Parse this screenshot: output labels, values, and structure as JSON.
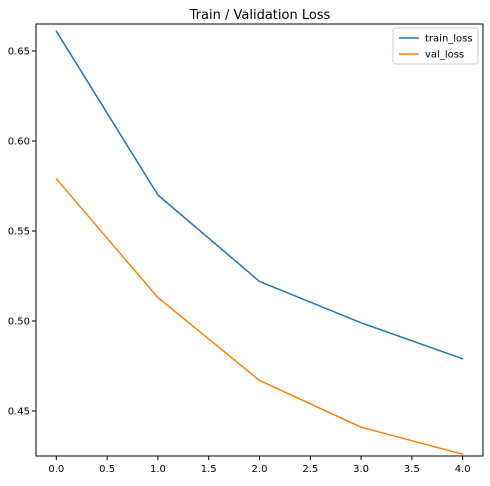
{
  "chart_data": {
    "type": "line",
    "title": "Train / Validation Loss",
    "xlabel": "",
    "ylabel": "",
    "x": [
      0,
      1,
      2,
      3,
      4
    ],
    "xlim": [
      -0.2,
      4.2
    ],
    "ylim": [
      0.425,
      0.665
    ],
    "xticks": [
      0.0,
      0.5,
      1.0,
      1.5,
      2.0,
      2.5,
      3.0,
      3.5,
      4.0
    ],
    "xtick_labels": [
      "0.0",
      "0.5",
      "1.0",
      "1.5",
      "2.0",
      "2.5",
      "3.0",
      "3.5",
      "4.0"
    ],
    "yticks": [
      0.45,
      0.5,
      0.55,
      0.6,
      0.65
    ],
    "ytick_labels": [
      "0.45",
      "0.50",
      "0.55",
      "0.60",
      "0.65"
    ],
    "grid": false,
    "legend_position": "top-right",
    "series": [
      {
        "name": "train_loss",
        "color": "#1f77b4",
        "values": [
          0.661,
          0.57,
          0.522,
          0.499,
          0.479
        ]
      },
      {
        "name": "val_loss",
        "color": "#ff7f0e",
        "values": [
          0.579,
          0.513,
          0.467,
          0.441,
          0.426
        ]
      }
    ]
  }
}
